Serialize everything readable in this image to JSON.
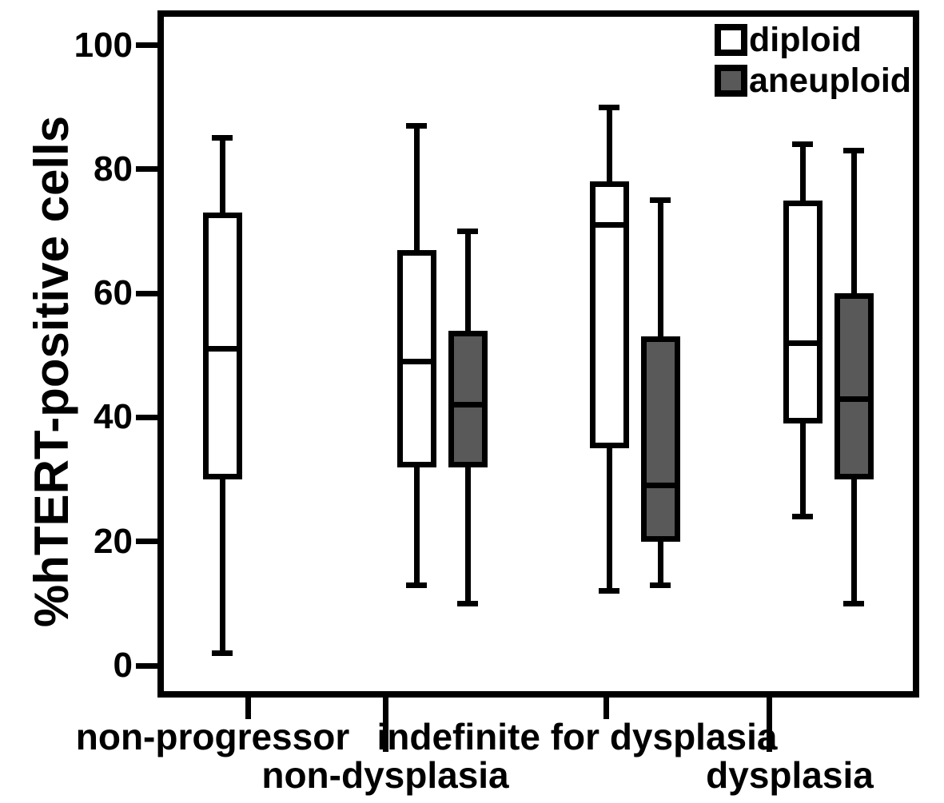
{
  "chart_data": {
    "type": "boxplot",
    "title": "",
    "xlabel": "",
    "ylabel": "%hTERT-positive cells",
    "ylim": [
      0,
      100
    ],
    "yticks": [
      100,
      80,
      60,
      40,
      20,
      0
    ],
    "grid": false,
    "legend_position": "top-right-inside",
    "colors": {
      "stroke": "#000000",
      "background": "#ffffff",
      "diploid_fill": "#ffffff",
      "aneuploid_fill": "#595959"
    },
    "legend": [
      {
        "label": "diploid",
        "fill": "#ffffff"
      },
      {
        "label": "aneuploid",
        "fill": "#595959"
      }
    ],
    "groups": [
      {
        "label": "non-progressor",
        "boxes": [
          {
            "series": "diploid",
            "whisker_low": 2,
            "q1": 30,
            "median": 51,
            "q3": 73,
            "whisker_high": 85
          }
        ]
      },
      {
        "label": "non-dysplasia",
        "boxes": [
          {
            "series": "diploid",
            "whisker_low": 13,
            "q1": 32,
            "median": 49,
            "q3": 67,
            "whisker_high": 87
          },
          {
            "series": "aneuploid",
            "whisker_low": 10,
            "q1": 32,
            "median": 42,
            "q3": 54,
            "whisker_high": 70
          }
        ]
      },
      {
        "label": "indefinite for dysplasia",
        "boxes": [
          {
            "series": "diploid",
            "whisker_low": 12,
            "q1": 35,
            "median": 71,
            "q3": 78,
            "whisker_high": 90
          },
          {
            "series": "aneuploid",
            "whisker_low": 13,
            "q1": 20,
            "median": 29,
            "q3": 53,
            "whisker_high": 75
          }
        ]
      },
      {
        "label": "dysplasia",
        "boxes": [
          {
            "series": "diploid",
            "whisker_low": 24,
            "q1": 39,
            "median": 52,
            "q3": 75,
            "whisker_high": 84
          },
          {
            "series": "aneuploid",
            "whisker_low": 10,
            "q1": 30,
            "median": 43,
            "q3": 60,
            "whisker_high": 83
          }
        ]
      }
    ]
  }
}
